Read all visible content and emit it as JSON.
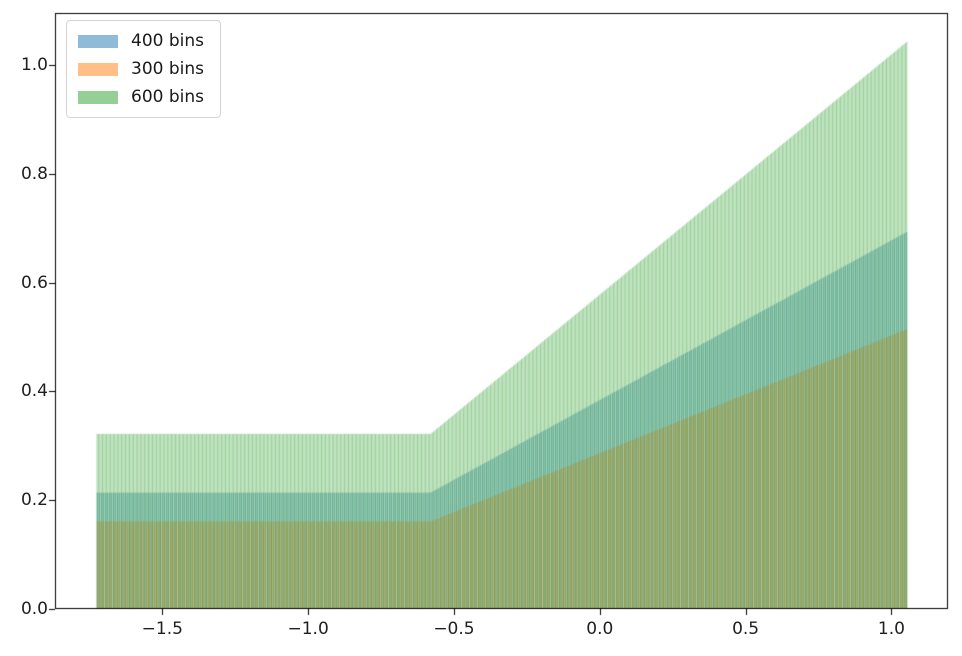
{
  "chart_data": {
    "type": "histogram",
    "title": "",
    "xlabel": "",
    "ylabel": "",
    "xlim": [
      -1.868,
      1.194
    ],
    "ylim": [
      0,
      1.096
    ],
    "xticks": [
      -1.5,
      -1.0,
      -0.5,
      0.0,
      0.5,
      1.0
    ],
    "xtick_labels": [
      "−1.5",
      "−1.0",
      "−0.5",
      "0.0",
      "0.5",
      "1.0"
    ],
    "yticks": [
      0.0,
      0.2,
      0.4,
      0.6,
      0.8,
      1.0
    ],
    "ytick_labels": [
      "0.0",
      "0.2",
      "0.4",
      "0.6",
      "0.8",
      "1.0"
    ],
    "sample_range": [
      -1.726,
      1.055
    ],
    "envelope_kink_x": -0.58,
    "bar_alpha": 0.5,
    "bar_width_fraction": 0.7,
    "grid": false,
    "legend_position": "upper left",
    "series": [
      {
        "name": "400 bins",
        "color": "#1f77b4",
        "bins": 400,
        "flat_height": 0.214,
        "peak_height": 0.694
      },
      {
        "name": "300 bins",
        "color": "#ff7f0e",
        "bins": 300,
        "flat_height": 0.161,
        "peak_height": 0.515
      },
      {
        "name": "600 bins",
        "color": "#2ca02c",
        "bins": 600,
        "flat_height": 0.322,
        "peak_height": 1.044
      }
    ],
    "axes_style": {
      "spine_color": "#000000",
      "tick_color": "#000000",
      "tick_label_color": "#1f1f1f",
      "background": "#ffffff"
    }
  }
}
